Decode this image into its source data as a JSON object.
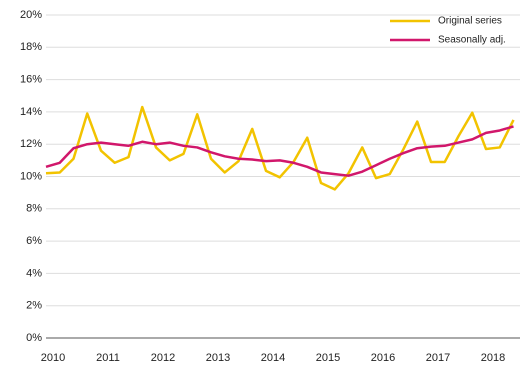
{
  "chart_data": {
    "type": "line",
    "categories": [
      "2010",
      null,
      null,
      null,
      "2011",
      null,
      null,
      null,
      "2012",
      null,
      null,
      null,
      "2013",
      null,
      null,
      null,
      "2014",
      null,
      null,
      null,
      "2015",
      null,
      null,
      null,
      "2016",
      null,
      null,
      null,
      "2017",
      null,
      null,
      null,
      "2018",
      null,
      null
    ],
    "series": [
      {
        "name": "Original series",
        "color": "#f2c300",
        "values": [
          10.2,
          10.25,
          11.1,
          13.9,
          11.6,
          10.85,
          11.2,
          14.3,
          11.8,
          11.0,
          11.4,
          13.85,
          11.1,
          10.25,
          10.95,
          12.95,
          10.35,
          9.95,
          10.9,
          12.4,
          9.6,
          9.2,
          10.2,
          11.8,
          9.9,
          10.15,
          11.7,
          13.4,
          10.9,
          10.9,
          12.5,
          13.95,
          11.7,
          11.8,
          13.5
        ]
      },
      {
        "name": "Seasonally adj.",
        "color": "#d1176b",
        "values": [
          10.6,
          10.85,
          11.75,
          12.0,
          12.1,
          12.0,
          11.9,
          12.15,
          12.0,
          12.1,
          11.9,
          11.8,
          11.5,
          11.25,
          11.1,
          11.05,
          10.95,
          11.0,
          10.85,
          10.6,
          10.25,
          10.15,
          10.05,
          10.3,
          10.7,
          11.1,
          11.45,
          11.75,
          11.85,
          11.9,
          12.1,
          12.3,
          12.7,
          12.85,
          13.1
        ]
      }
    ],
    "ylim": [
      0,
      20
    ],
    "yticks": [
      {
        "value": 0,
        "label": "0%"
      },
      {
        "value": 2,
        "label": "2%"
      },
      {
        "value": 4,
        "label": "4%"
      },
      {
        "value": 6,
        "label": "6%"
      },
      {
        "value": 8,
        "label": "8%"
      },
      {
        "value": 10,
        "label": "10%"
      },
      {
        "value": 12,
        "label": "12%"
      },
      {
        "value": 14,
        "label": "14%"
      },
      {
        "value": 16,
        "label": "16%"
      },
      {
        "value": 18,
        "label": "18%"
      },
      {
        "value": 20,
        "label": "20%"
      }
    ],
    "grid": true,
    "legend": "top-right"
  }
}
